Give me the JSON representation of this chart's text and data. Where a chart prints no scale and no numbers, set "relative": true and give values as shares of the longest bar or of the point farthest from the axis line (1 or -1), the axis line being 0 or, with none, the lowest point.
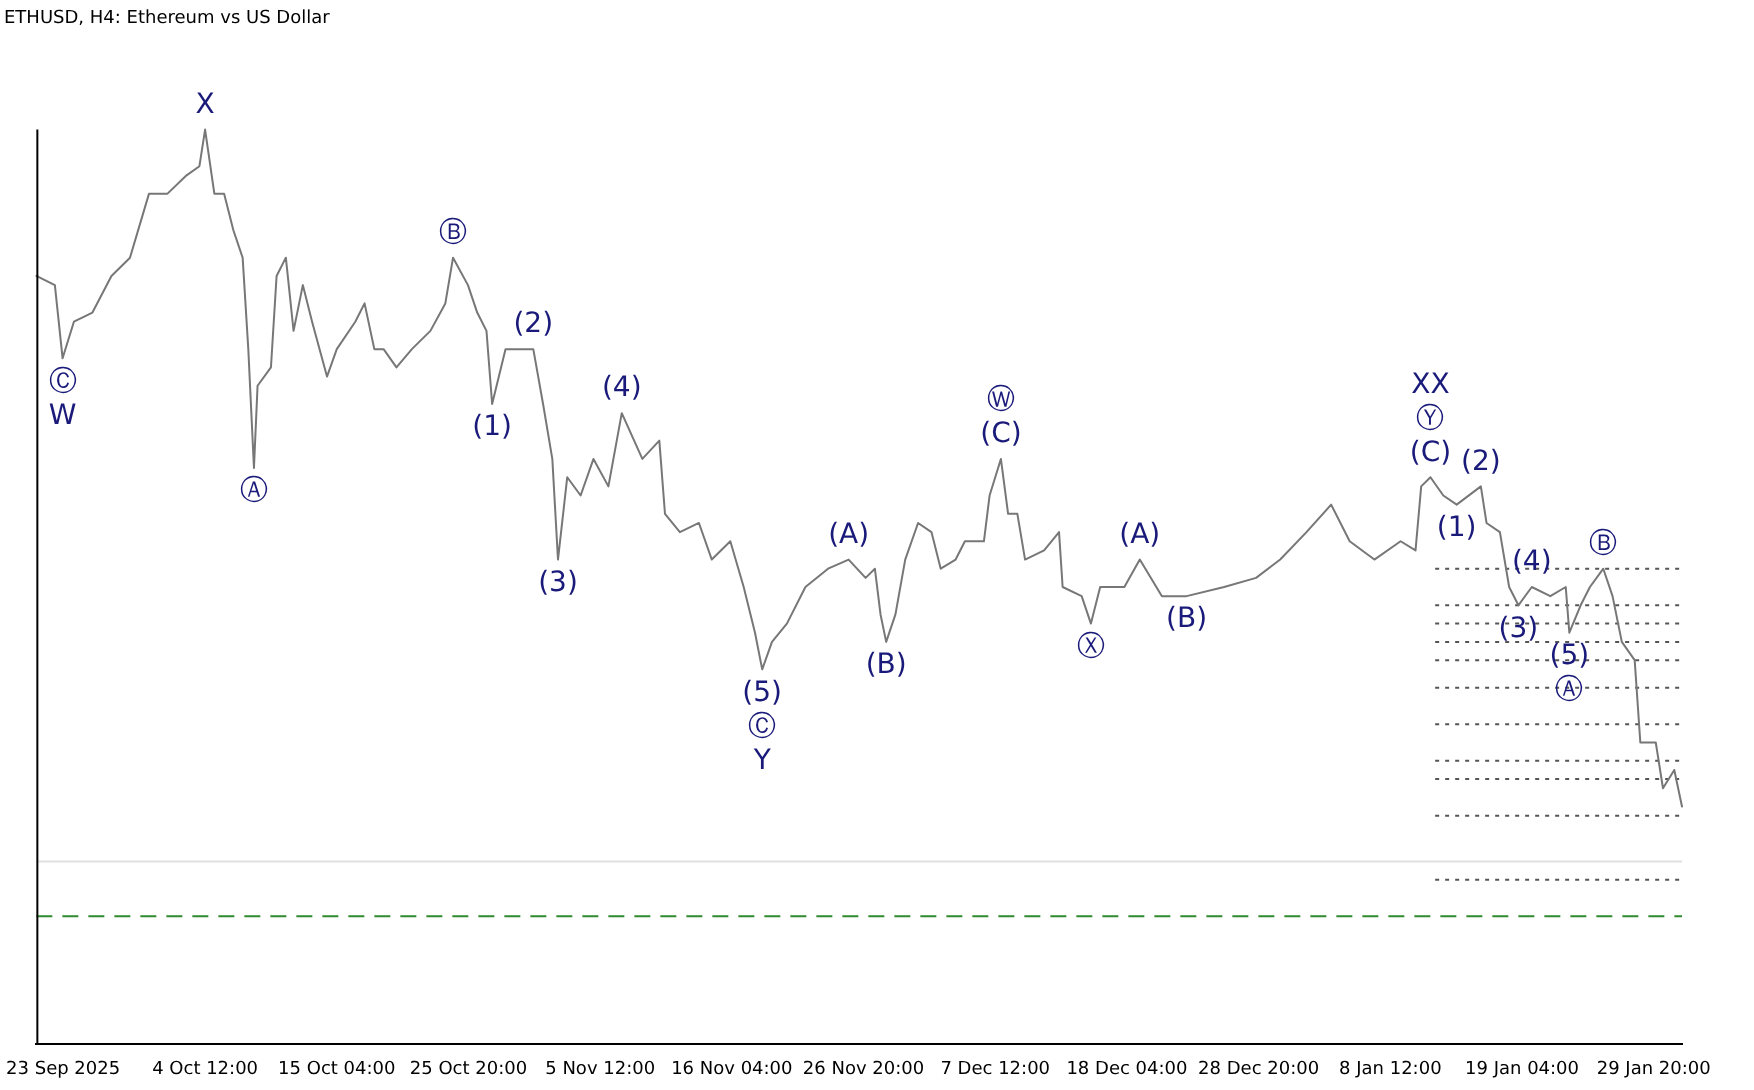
{
  "chart_data": {
    "type": "line",
    "title": "ETHUSD, H4: Ethereum vs US Dollar",
    "relative": true,
    "legend": false,
    "grid": false,
    "marker": "none",
    "line_style": "solid",
    "x": [
      "2025-09-20T20:00",
      "2025-09-22T08:00",
      "2025-09-22T23:00",
      "2025-09-23T21:00",
      "2025-09-25T09:00",
      "2025-09-26T22:00",
      "2025-09-28T10:00",
      "2025-09-29T23:00",
      "2025-10-01T11:00",
      "2025-10-03T00:00",
      "2025-10-04T01:00",
      "2025-10-04T12:00",
      "2025-10-05T06:00",
      "2025-10-06T01:00",
      "2025-10-06T19:00",
      "2025-10-07T13:00",
      "2025-10-08T00:00",
      "2025-10-08T11:00",
      "2025-10-08T18:00",
      "2025-10-09T20:00",
      "2025-10-10T07:00",
      "2025-10-11T01:00",
      "2025-10-11T16:00",
      "2025-10-12T10:00",
      "2025-10-13T04:00",
      "2025-10-14T09:00",
      "2025-10-15T04:00",
      "2025-10-16T16:00",
      "2025-10-17T10:00",
      "2025-10-18T05:00",
      "2025-10-18T23:00",
      "2025-10-20T00:00",
      "2025-10-21T06:00",
      "2025-10-22T18:00",
      "2025-10-23T23:00",
      "2025-10-24T14:00",
      "2025-10-25T19:00",
      "2025-10-26T13:00",
      "2025-10-27T07:00",
      "2025-10-27T18:00",
      "2025-10-28T20:00",
      "2025-10-30T01:00",
      "2025-10-31T02:00",
      "2025-10-31T21:00",
      "2025-11-01T15:00",
      "2025-11-02T02:00",
      "2025-11-02T20:00",
      "2025-11-03T22:00",
      "2025-11-04T23:00",
      "2025-11-06T04:00",
      "2025-11-07T06:00",
      "2025-11-08T22:00",
      "2025-11-10T07:00",
      "2025-11-10T18:00",
      "2025-11-11T23:00",
      "2025-11-13T12:00",
      "2025-11-14T13:00",
      "2025-11-16T01:00",
      "2025-11-17T03:00",
      "2025-11-18T01:00",
      "2025-11-18T15:00",
      "2025-11-19T10:00",
      "2025-11-20T15:00",
      "2025-11-22T03:00",
      "2025-11-23T23:00",
      "2025-11-25T15:00",
      "2025-11-27T00:00",
      "2025-11-27T18:00",
      "2025-11-28T05:00",
      "2025-11-28T16:00",
      "2025-11-29T10:00",
      "2025-11-30T05:00",
      "2025-12-01T06:00",
      "2025-12-02T08:00",
      "2025-12-03T02:00",
      "2025-12-04T07:00",
      "2025-12-05T01:00",
      "2025-12-06T14:00",
      "2025-12-07T01:00",
      "2025-12-07T23:00",
      "2025-12-08T13:00",
      "2025-12-09T07:00",
      "2025-12-09T22:00",
      "2025-12-11T11:00",
      "2025-12-12T16:00",
      "2025-12-12T23:00",
      "2025-12-14T12:00",
      "2025-12-15T06:00",
      "2025-12-16T00:00",
      "2025-12-16T22:00",
      "2025-12-17T23:00",
      "2025-12-19T05:00",
      "2025-12-21T00:00",
      "2025-12-23T00:00",
      "2025-12-26T01:00",
      "2025-12-28T15:00",
      "2025-12-30T14:00",
      "2026-01-01T17:00",
      "2026-01-03T17:00",
      "2026-01-05T05:00",
      "2026-01-07T05:00",
      "2026-01-09T08:00",
      "2026-01-10T13:00",
      "2026-01-11T00:00",
      "2026-01-11T18:00",
      "2026-01-12T19:00",
      "2026-01-13T21:00",
      "2026-01-15T20:00",
      "2026-01-16T07:00",
      "2026-01-17T09:00",
      "2026-01-18T03:00",
      "2026-01-18T21:00",
      "2026-01-19T23:00",
      "2026-01-21T11:00",
      "2026-01-22T17:00",
      "2026-01-23T00:00",
      "2026-01-23T22:00",
      "2026-01-24T16:00",
      "2026-01-25T18:00",
      "2026-01-26T12:00",
      "2026-01-27T06:00",
      "2026-01-28T07:00",
      "2026-01-28T18:00",
      "2026-01-30T00:00",
      "2026-01-30T14:00",
      "2026-01-31T12:00",
      "2026-02-01T03:00"
    ],
    "series": [
      {
        "color": "#777777",
        "values": [
          0.84,
          0.83,
          0.75,
          0.79,
          0.8,
          0.84,
          0.86,
          0.93,
          0.93,
          0.95,
          0.96,
          1,
          0.93,
          0.93,
          0.89,
          0.86,
          0.76,
          0.63,
          0.72,
          0.74,
          0.84,
          0.86,
          0.78,
          0.83,
          0.79,
          0.73,
          0.76,
          0.79,
          0.81,
          0.76,
          0.76,
          0.74,
          0.76,
          0.78,
          0.81,
          0.86,
          0.83,
          0.8,
          0.78,
          0.7,
          0.76,
          0.76,
          0.76,
          0.7,
          0.64,
          0.53,
          0.62,
          0.6,
          0.64,
          0.61,
          0.69,
          0.64,
          0.66,
          0.58,
          0.56,
          0.57,
          0.53,
          0.55,
          0.5,
          0.45,
          0.41,
          0.44,
          0.46,
          0.5,
          0.52,
          0.53,
          0.51,
          0.52,
          0.47,
          0.44,
          0.47,
          0.53,
          0.57,
          0.56,
          0.52,
          0.53,
          0.55,
          0.55,
          0.6,
          0.64,
          0.58,
          0.58,
          0.53,
          0.54,
          0.56,
          0.5,
          0.49,
          0.46,
          0.5,
          0.5,
          0.5,
          0.53,
          0.49,
          0.49,
          0.5,
          0.51,
          0.53,
          0.56,
          0.59,
          0.55,
          0.53,
          0.55,
          0.54,
          0.61,
          0.62,
          0.6,
          0.59,
          0.61,
          0.57,
          0.56,
          0.5,
          0.48,
          0.5,
          0.49,
          0.5,
          0.45,
          0.48,
          0.5,
          0.52,
          0.49,
          0.44,
          0.42,
          0.33,
          0.33,
          0.28,
          0.3,
          0.26
        ]
      }
    ],
    "xlim": [
      "2025-09-20T20:00",
      "2026-02-01T03:00"
    ],
    "xticks": [
      {
        "value": "2025-09-23T00:00",
        "label": "23 Sep 2025"
      },
      {
        "value": "2025-10-04T12:00",
        "label": "4 Oct 12:00"
      },
      {
        "value": "2025-10-15T04:00",
        "label": "15 Oct 04:00"
      },
      {
        "value": "2025-10-25T20:00",
        "label": "25 Oct 20:00"
      },
      {
        "value": "2025-11-05T12:00",
        "label": "5 Nov 12:00"
      },
      {
        "value": "2025-11-16T04:00",
        "label": "16 Nov 04:00"
      },
      {
        "value": "2025-11-26T20:00",
        "label": "26 Nov 20:00"
      },
      {
        "value": "2025-12-07T12:00",
        "label": "7 Dec 12:00"
      },
      {
        "value": "2025-12-18T04:00",
        "label": "18 Dec 04:00"
      },
      {
        "value": "2025-12-28T20:00",
        "label": "28 Dec 20:00"
      },
      {
        "value": "2026-01-08T12:00",
        "label": "8 Jan 12:00"
      },
      {
        "value": "2026-01-19T04:00",
        "label": "19 Jan 04:00"
      },
      {
        "value": "2026-01-29T20:00",
        "label": "29 Jan 20:00"
      }
    ],
    "ref_lines": [
      {
        "axis": "y",
        "value": 0.2,
        "color": "#e0e0e0",
        "line_style": "solid"
      },
      {
        "axis": "y",
        "value": 0.14,
        "color": "#2e8b2e",
        "line_style": "dashed"
      },
      {
        "axis": "y",
        "value": 0.52,
        "color": "#555555",
        "line_style": "dotted"
      },
      {
        "axis": "y",
        "value": 0.48,
        "color": "#555555",
        "line_style": "dotted"
      },
      {
        "axis": "y",
        "value": 0.46,
        "color": "#555555",
        "line_style": "dotted"
      },
      {
        "axis": "y",
        "value": 0.44,
        "color": "#555555",
        "line_style": "dotted"
      },
      {
        "axis": "y",
        "value": 0.42,
        "color": "#555555",
        "line_style": "dotted"
      },
      {
        "axis": "y",
        "value": 0.39,
        "color": "#555555",
        "line_style": "dotted"
      },
      {
        "axis": "y",
        "value": 0.35,
        "color": "#555555",
        "line_style": "dotted"
      },
      {
        "axis": "y",
        "value": 0.31,
        "color": "#555555",
        "line_style": "dotted"
      },
      {
        "axis": "y",
        "value": 0.29,
        "color": "#555555",
        "line_style": "dotted"
      },
      {
        "axis": "y",
        "value": 0.25,
        "color": "#555555",
        "line_style": "dotted"
      },
      {
        "axis": "y",
        "value": 0.18,
        "color": "#555555",
        "line_style": "dotted"
      }
    ],
    "annotations": [
      {
        "text": "Ⓒ",
        "x": "2025-09-22T23:00",
        "y": 0.75
      },
      {
        "text": "W",
        "x": "2025-09-22T23:00",
        "y": 0.75
      },
      {
        "text": "X",
        "x": "2025-10-04T12:00",
        "y": 1
      },
      {
        "text": "Ⓐ",
        "x": "2025-10-08T11:00",
        "y": 0.63
      },
      {
        "text": "Ⓑ",
        "x": "2025-10-24T14:00",
        "y": 0.86
      },
      {
        "text": "(1)",
        "x": "2025-10-27T18:00",
        "y": 0.7
      },
      {
        "text": "(2)",
        "x": "2025-10-31T02:00",
        "y": 0.76
      },
      {
        "text": "(3)",
        "x": "2025-11-02T02:00",
        "y": 0.53
      },
      {
        "text": "(4)",
        "x": "2025-11-07T06:00",
        "y": 0.69
      },
      {
        "text": "(5)",
        "x": "2025-11-18T15:00",
        "y": 0.41
      },
      {
        "text": "Ⓒ",
        "x": "2025-11-18T15:00",
        "y": 0.41
      },
      {
        "text": "Y",
        "x": "2025-11-18T15:00",
        "y": 0.41
      },
      {
        "text": "(A)",
        "x": "2025-11-25T15:00",
        "y": 0.53
      },
      {
        "text": "(B)",
        "x": "2025-11-28T16:00",
        "y": 0.44
      },
      {
        "text": "Ⓦ",
        "x": "2025-12-07T23:00",
        "y": 0.64
      },
      {
        "text": "(C)",
        "x": "2025-12-07T23:00",
        "y": 0.64
      },
      {
        "text": "Ⓧ",
        "x": "2025-12-15T06:00",
        "y": 0.46
      },
      {
        "text": "(A)",
        "x": "2025-12-19T05:00",
        "y": 0.53
      },
      {
        "text": "(B)",
        "x": "2025-12-23T00:00",
        "y": 0.49
      },
      {
        "text": "XX",
        "x": "2026-01-11T18:00",
        "y": 0.62
      },
      {
        "text": "Ⓨ",
        "x": "2026-01-11T18:00",
        "y": 0.62
      },
      {
        "text": "(C)",
        "x": "2026-01-11T18:00",
        "y": 0.62
      },
      {
        "text": "(1)",
        "x": "2026-01-13T21:00",
        "y": 0.59
      },
      {
        "text": "(2)",
        "x": "2026-01-15T20:00",
        "y": 0.61
      },
      {
        "text": "(3)",
        "x": "2026-01-18T21:00",
        "y": 0.48
      },
      {
        "text": "(4)",
        "x": "2026-01-19T23:00",
        "y": 0.5
      },
      {
        "text": "(5)",
        "x": "2026-01-23T00:00",
        "y": 0.45
      },
      {
        "text": "Ⓐ",
        "x": "2026-01-23T00:00",
        "y": 0.45
      },
      {
        "text": "Ⓑ",
        "x": "2026-01-25T18:00",
        "y": 0.52
      }
    ]
  }
}
